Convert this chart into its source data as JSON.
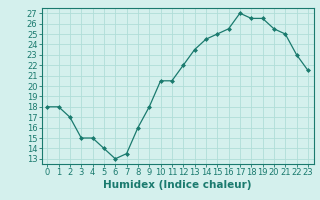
{
  "x": [
    0,
    1,
    2,
    3,
    4,
    5,
    6,
    7,
    8,
    9,
    10,
    11,
    12,
    13,
    14,
    15,
    16,
    17,
    18,
    19,
    20,
    21,
    22,
    23
  ],
  "y": [
    18,
    18,
    17,
    15,
    15,
    14,
    13,
    13.5,
    16,
    18,
    20.5,
    20.5,
    22,
    23.5,
    24.5,
    25,
    25.5,
    27,
    26.5,
    26.5,
    25.5,
    25,
    23,
    21.5
  ],
  "line_color": "#1a7a6e",
  "marker_color": "#1a7a6e",
  "bg_color": "#d4f0ed",
  "grid_color": "#b0ddd8",
  "xlabel": "Humidex (Indice chaleur)",
  "ylabel": "",
  "title": "",
  "xlim": [
    -0.5,
    23.5
  ],
  "ylim": [
    12.5,
    27.5
  ],
  "yticks": [
    13,
    14,
    15,
    16,
    17,
    18,
    19,
    20,
    21,
    22,
    23,
    24,
    25,
    26,
    27
  ],
  "xticks": [
    0,
    1,
    2,
    3,
    4,
    5,
    6,
    7,
    8,
    9,
    10,
    11,
    12,
    13,
    14,
    15,
    16,
    17,
    18,
    19,
    20,
    21,
    22,
    23
  ],
  "tick_label_fontsize": 6,
  "xlabel_fontsize": 7.5
}
